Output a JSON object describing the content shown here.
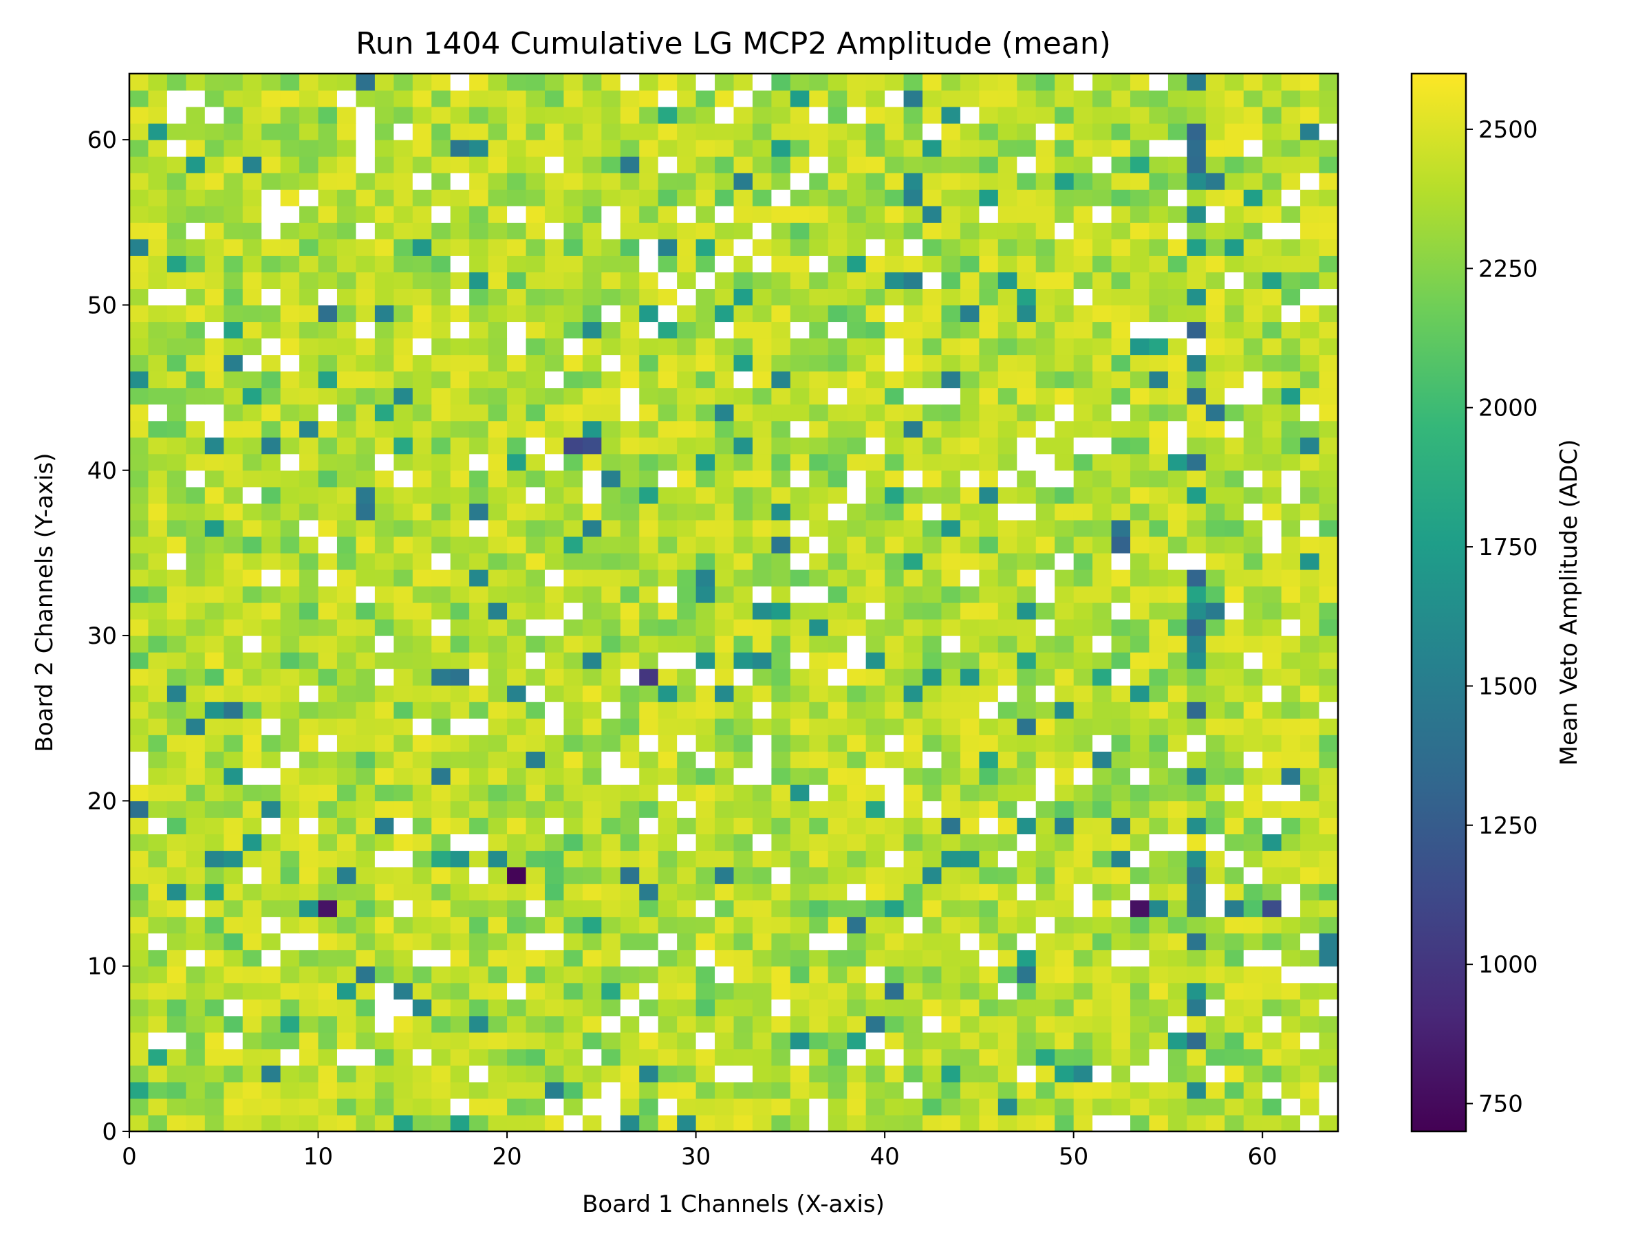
{
  "chart_data": {
    "type": "heatmap",
    "title": "Run 1404 Cumulative LG MCP2 Amplitude (mean)",
    "xlabel": "Board 1 Channels (X-axis)",
    "ylabel": "Board 2 Channels (Y-axis)",
    "xlim": [
      0,
      64
    ],
    "ylim": [
      0,
      64
    ],
    "x_ticks": [
      "0",
      "10",
      "20",
      "30",
      "40",
      "50",
      "60"
    ],
    "y_ticks": [
      "0",
      "10",
      "20",
      "30",
      "40",
      "50",
      "60"
    ],
    "grid": false,
    "colormap": "viridis",
    "colorbar": {
      "label": "Mean Veto Amplitude (ADC)",
      "range": [
        700,
        2600
      ],
      "ticks": [
        "750",
        "1000",
        "1250",
        "1500",
        "1750",
        "2000",
        "2250",
        "2500"
      ]
    },
    "grid_size": [
      64,
      64
    ],
    "typical_value_range": [
      1900,
      2550
    ],
    "missing_cell_color": "#ffffff",
    "notable_cells": [
      {
        "x": 20,
        "y": 15,
        "value": 720
      },
      {
        "x": 10,
        "y": 13,
        "value": 800
      },
      {
        "x": 53,
        "y": 13,
        "value": 780
      },
      {
        "x": 27,
        "y": 27,
        "value": 1000
      },
      {
        "x": 60,
        "y": 13,
        "value": 1150
      },
      {
        "x": 23,
        "y": 41,
        "value": 1100
      },
      {
        "x": 24,
        "y": 41,
        "value": 1150
      },
      {
        "x": 56,
        "y": 48,
        "value": 1300
      },
      {
        "x": 52,
        "y": 35,
        "value": 1300
      },
      {
        "x": 56,
        "y": 30,
        "value": 1350
      },
      {
        "x": 10,
        "y": 49,
        "value": 1400
      },
      {
        "x": 12,
        "y": 9,
        "value": 1450
      }
    ]
  }
}
